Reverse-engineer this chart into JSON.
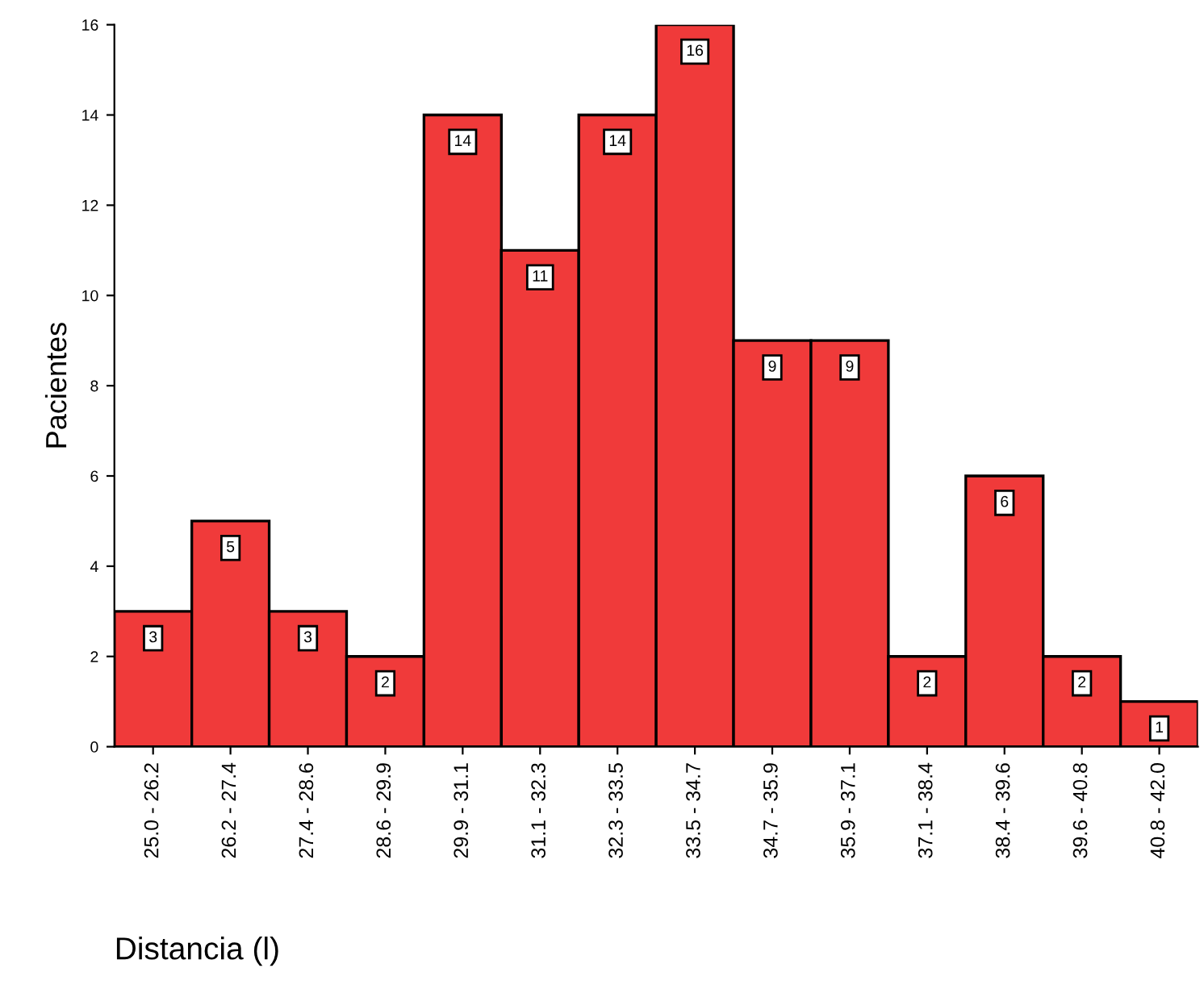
{
  "chart_data": {
    "type": "bar",
    "xlabel": "Distancia (l)",
    "ylabel": "Pacientes",
    "categories": [
      "25.0 - 26.2",
      "26.2 - 27.4",
      "27.4 - 28.6",
      "28.6 - 29.9",
      "29.9 - 31.1",
      "31.1 - 32.3",
      "32.3 - 33.5",
      "33.5 - 34.7",
      "34.7 - 35.9",
      "35.9 - 37.1",
      "37.1 - 38.4",
      "38.4 - 39.6",
      "39.6 - 40.8",
      "40.8 - 42.0"
    ],
    "values": [
      3,
      5,
      3,
      2,
      14,
      11,
      14,
      16,
      9,
      9,
      2,
      6,
      2,
      1
    ],
    "color": "#f03a3a",
    "ylim": [
      0,
      16
    ],
    "yticks": [
      0,
      2,
      4,
      6,
      8,
      10,
      12,
      14,
      16
    ],
    "grid": false,
    "data_labels": true
  }
}
